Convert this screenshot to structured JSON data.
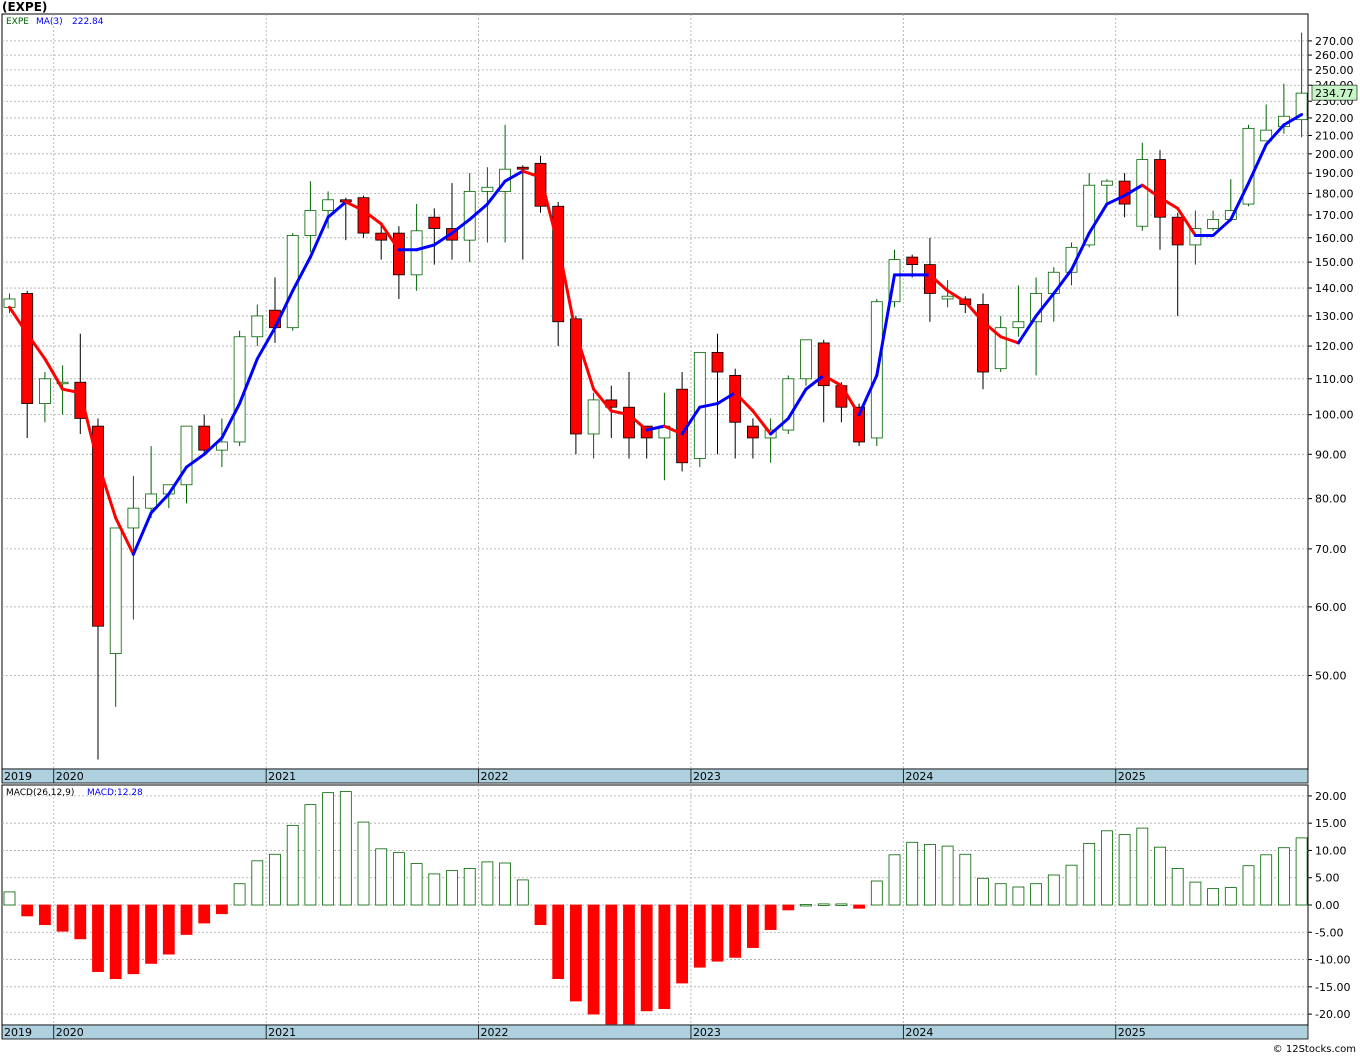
{
  "header": {
    "ticker": "(EXPE)",
    "watermark": "© 12Stocks.com"
  },
  "colors": {
    "up": "#006400",
    "down": "#ff0000",
    "ma_up": "#0000ff",
    "ma_down": "#ff0000",
    "last_price_bg": "#c8f5c8",
    "axis_band": "#aed0df",
    "grid": "#aaaaaa"
  },
  "chart_data": [
    {
      "type": "candlestick",
      "scale": "log",
      "ylim": [
        39,
        290
      ],
      "y_ticks": [
        50,
        60,
        70,
        80,
        90,
        100,
        110,
        120,
        130,
        140,
        150,
        160,
        170,
        180,
        190,
        200,
        210,
        220,
        230,
        240,
        250,
        260,
        270
      ],
      "y_tick_labels": [
        "50.00",
        "60.00",
        "70.00",
        "80.00",
        "90.00",
        "100.00",
        "110.00",
        "120.00",
        "130.00",
        "140.00",
        "150.00",
        "160.00",
        "170.00",
        "180.00",
        "190.00",
        "200.00",
        "210.00",
        "220.00",
        "230.00",
        "240.00",
        "250.00",
        "260.00",
        "270.00"
      ],
      "x_labels": [
        "2019",
        "2020",
        "2021",
        "2022",
        "2023",
        "2024",
        "2025"
      ],
      "x_label_index": [
        0,
        3,
        15,
        27,
        39,
        51,
        63
      ],
      "legend": {
        "symbol": "EXPE",
        "ma_name": "MA(3)",
        "ma_value": "222.84"
      },
      "last_price_label": "234.77",
      "candles": [
        [
          133,
          138,
          131,
          136
        ],
        [
          138,
          139,
          94,
          103
        ],
        [
          103,
          112,
          98,
          110
        ],
        [
          109,
          114,
          100,
          109
        ],
        [
          109,
          124,
          95,
          99
        ],
        [
          97,
          99,
          40,
          57
        ],
        [
          53,
          74,
          46,
          74
        ],
        [
          74,
          85,
          58,
          78
        ],
        [
          78,
          92,
          76,
          81
        ],
        [
          81,
          83,
          78,
          83
        ],
        [
          83,
          97,
          79,
          97
        ],
        [
          97,
          100,
          90,
          91
        ],
        [
          91,
          99,
          87,
          93
        ],
        [
          93,
          125,
          92,
          123
        ],
        [
          123,
          134,
          120,
          130
        ],
        [
          132,
          144,
          121,
          126
        ],
        [
          126,
          162,
          125,
          161
        ],
        [
          161,
          186,
          154,
          172
        ],
        [
          172,
          181,
          164,
          177
        ],
        [
          177,
          178,
          159,
          176
        ],
        [
          178,
          179,
          160,
          162
        ],
        [
          162,
          166,
          151,
          159
        ],
        [
          162,
          165,
          136,
          145
        ],
        [
          145,
          175,
          139,
          163
        ],
        [
          169,
          173,
          149,
          164
        ],
        [
          164,
          185,
          151,
          159
        ],
        [
          159,
          190,
          150,
          181
        ],
        [
          181,
          193,
          158,
          183
        ],
        [
          181,
          216,
          158,
          192
        ],
        [
          193,
          194,
          151,
          192
        ],
        [
          195,
          199,
          171,
          174
        ],
        [
          174,
          176,
          120,
          128
        ],
        [
          129,
          130,
          90,
          95
        ],
        [
          95,
          106,
          89,
          104
        ],
        [
          104,
          108,
          94,
          102
        ],
        [
          102,
          112,
          89,
          94
        ],
        [
          97,
          97,
          89,
          94
        ],
        [
          94,
          106,
          84,
          97
        ],
        [
          107,
          112,
          86,
          88
        ],
        [
          89,
          118,
          87,
          118
        ],
        [
          118,
          124,
          90,
          112
        ],
        [
          111,
          113,
          89,
          98
        ],
        [
          97,
          99,
          89,
          94
        ],
        [
          94,
          99,
          88,
          96
        ],
        [
          96,
          111,
          95,
          110
        ],
        [
          110,
          122,
          108,
          122
        ],
        [
          121,
          122,
          98,
          108
        ],
        [
          108,
          109,
          98,
          102
        ],
        [
          102,
          103,
          92,
          93
        ],
        [
          94,
          136,
          92,
          135
        ],
        [
          135,
          155,
          133,
          151
        ],
        [
          152,
          153,
          144,
          149
        ],
        [
          149,
          160,
          128,
          138
        ],
        [
          136,
          143,
          133,
          137
        ],
        [
          136,
          137,
          131,
          134
        ],
        [
          134,
          138,
          107,
          112
        ],
        [
          113,
          130,
          112,
          126
        ],
        [
          126,
          141,
          123,
          128
        ],
        [
          128,
          144,
          111,
          138
        ],
        [
          138,
          148,
          128,
          146
        ],
        [
          146,
          158,
          141,
          156
        ],
        [
          157,
          190,
          156,
          184
        ],
        [
          184,
          187,
          175,
          186
        ],
        [
          186,
          190,
          169,
          175
        ],
        [
          165,
          206,
          163,
          197
        ],
        [
          197,
          202,
          155,
          169
        ],
        [
          169,
          171,
          130,
          157
        ],
        [
          157,
          172,
          149,
          164
        ],
        [
          164,
          172,
          163,
          168
        ],
        [
          168,
          187,
          167,
          172
        ],
        [
          175,
          216,
          174,
          214
        ],
        [
          207,
          228,
          208,
          213
        ],
        [
          215,
          241,
          211,
          221
        ],
        [
          219,
          276,
          209,
          235
        ]
      ],
      "ma": [
        133,
        124,
        116,
        107,
        106,
        88,
        76,
        69,
        77,
        81,
        87,
        90,
        94,
        103,
        116,
        126,
        139,
        152,
        169,
        176,
        172,
        166,
        155,
        155,
        157,
        162,
        168,
        175,
        186,
        191,
        188,
        157,
        124,
        107,
        101,
        100,
        96,
        97,
        95,
        102,
        103,
        106,
        101,
        95,
        99,
        107,
        111,
        108,
        100,
        111,
        145,
        145,
        145,
        139,
        135,
        128,
        123,
        121,
        130,
        138,
        147,
        162,
        175,
        179,
        184,
        178,
        173,
        161,
        161,
        168,
        185,
        205,
        216,
        222
      ]
    },
    {
      "type": "bar",
      "name": "MACD(26,12,9)",
      "legend_value": "MACD:12.28",
      "ylim": [
        -22,
        22
      ],
      "y_ticks": [
        -20,
        -15,
        -10,
        -5,
        0,
        5,
        10,
        15,
        20
      ],
      "y_tick_labels": [
        "-20.00",
        "-15.00",
        "-10.00",
        "-5.00",
        "0.00",
        "5.00",
        "10.00",
        "15.00",
        "20.00"
      ],
      "x_labels": [
        "2019",
        "2020",
        "2021",
        "2022",
        "2023",
        "2024",
        "2025"
      ],
      "x_label_index": [
        0,
        3,
        15,
        27,
        39,
        51,
        63
      ],
      "values": [
        2.4,
        -2.0,
        -3.6,
        -4.8,
        -6.2,
        -12.2,
        -13.5,
        -12.6,
        -10.7,
        -9.0,
        -5.4,
        -3.3,
        -1.6,
        3.9,
        8.1,
        9.3,
        14.6,
        18.4,
        20.6,
        20.8,
        15.2,
        10.3,
        9.6,
        7.6,
        5.7,
        6.3,
        6.7,
        7.9,
        7.7,
        4.6,
        -3.6,
        -13.5,
        -17.6,
        -20.0,
        -21.8,
        -21.8,
        -19.4,
        -19.0,
        -14.3,
        -11.4,
        -10.3,
        -9.6,
        -7.8,
        -4.5,
        -0.9,
        0.1,
        0.2,
        0.2,
        -0.6,
        4.4,
        9.2,
        11.5,
        11.1,
        10.8,
        9.3,
        4.9,
        3.9,
        3.3,
        3.9,
        5.5,
        7.3,
        11.3,
        13.6,
        12.9,
        14.1,
        10.6,
        6.7,
        4.2,
        3.0,
        3.2,
        7.2,
        9.2,
        10.5,
        12.3
      ]
    }
  ]
}
